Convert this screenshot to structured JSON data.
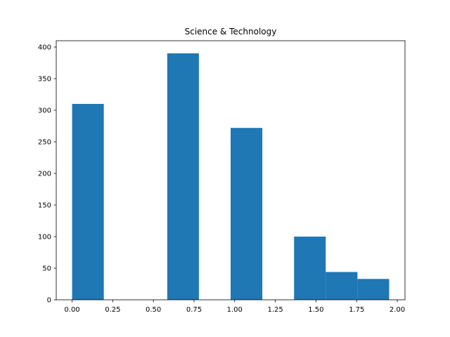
{
  "chart_data": {
    "type": "bar",
    "title": "Science & Technology",
    "xlabel": "",
    "ylabel": "",
    "bar_color": "#1f77b4",
    "bins": [
      {
        "x0": 0.0,
        "x1": 0.195,
        "count": 310
      },
      {
        "x0": 0.195,
        "x1": 0.39,
        "count": 0
      },
      {
        "x0": 0.39,
        "x1": 0.585,
        "count": 0
      },
      {
        "x0": 0.585,
        "x1": 0.78,
        "count": 390
      },
      {
        "x0": 0.78,
        "x1": 0.975,
        "count": 0
      },
      {
        "x0": 0.975,
        "x1": 1.17,
        "count": 272
      },
      {
        "x0": 1.17,
        "x1": 1.365,
        "count": 0
      },
      {
        "x0": 1.365,
        "x1": 1.56,
        "count": 100
      },
      {
        "x0": 1.56,
        "x1": 1.755,
        "count": 44
      },
      {
        "x0": 1.755,
        "x1": 1.95,
        "count": 33
      }
    ],
    "xlim": [
      -0.0975,
      2.0475
    ],
    "ylim": [
      0,
      410
    ],
    "xticks": [
      {
        "value": 0.0,
        "label": "0.00"
      },
      {
        "value": 0.25,
        "label": "0.25"
      },
      {
        "value": 0.5,
        "label": "0.50"
      },
      {
        "value": 0.75,
        "label": "0.75"
      },
      {
        "value": 1.0,
        "label": "1.00"
      },
      {
        "value": 1.25,
        "label": "1.25"
      },
      {
        "value": 1.5,
        "label": "1.50"
      },
      {
        "value": 1.75,
        "label": "1.75"
      },
      {
        "value": 2.0,
        "label": "2.00"
      }
    ],
    "yticks": [
      {
        "value": 0,
        "label": "0"
      },
      {
        "value": 50,
        "label": "50"
      },
      {
        "value": 100,
        "label": "100"
      },
      {
        "value": 150,
        "label": "150"
      },
      {
        "value": 200,
        "label": "200"
      },
      {
        "value": 250,
        "label": "250"
      },
      {
        "value": 300,
        "label": "300"
      },
      {
        "value": 350,
        "label": "350"
      },
      {
        "value": 400,
        "label": "400"
      }
    ],
    "grid": false,
    "legend": "none"
  }
}
